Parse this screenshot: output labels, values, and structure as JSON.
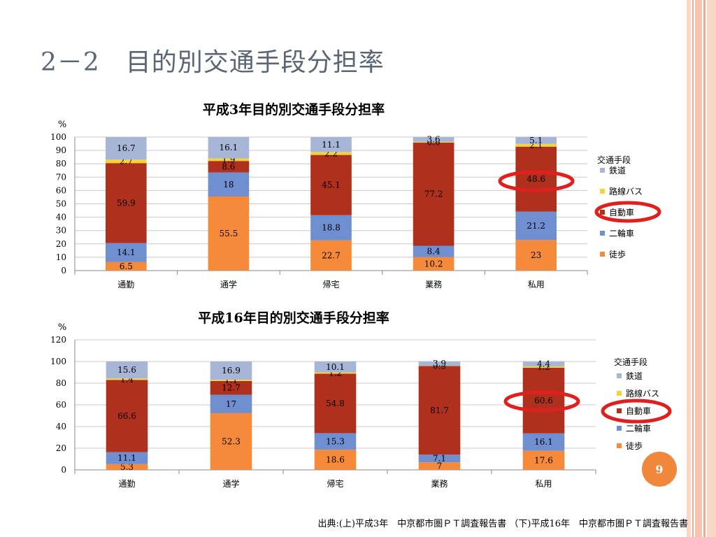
{
  "slide": {
    "title": "2－2　目的別交通手段分担率",
    "page_number": "9",
    "source": "出典:(上)平成3年　中京都市圏ＰＴ調査報告書 （下)平成16年　中京都市圏ＰＴ調査報告書"
  },
  "colors": {
    "鉄道": "#a7b5d6",
    "路線バス": "#f5d33a",
    "自動車": "#b0301e",
    "二輪車": "#6f8fd0",
    "徒歩": "#f58a3a",
    "highlight_ellipse": "#e0201e",
    "page_badge": "#f0873a",
    "title_text": "#5a6675"
  },
  "chart_data": [
    {
      "type": "bar",
      "stacked": true,
      "title": "平成3年目的別交通手段分担率",
      "ylabel": "%",
      "ylim": [
        0,
        100
      ],
      "yticks": [
        0,
        10,
        20,
        30,
        40,
        50,
        60,
        70,
        80,
        90,
        100
      ],
      "categories": [
        "通勤",
        "通学",
        "帰宅",
        "業務",
        "私用"
      ],
      "legend_title": "交通手段",
      "legend_order": [
        "鉄道",
        "路線バス",
        "自動車",
        "二輪車",
        "徒歩"
      ],
      "legend_position": "right",
      "highlight": {
        "category": "私用",
        "series": "自動車",
        "legend_item": "自動車"
      },
      "series": [
        {
          "name": "徒歩",
          "values": [
            6.5,
            55.5,
            22.7,
            10.2,
            23
          ]
        },
        {
          "name": "二輪車",
          "values": [
            14.1,
            18,
            18.8,
            8.4,
            21.2
          ]
        },
        {
          "name": "自動車",
          "values": [
            59.9,
            8.6,
            45.1,
            77.2,
            48.6
          ]
        },
        {
          "name": "路線バス",
          "values": [
            2.7,
            1.9,
            2.2,
            0.6,
            2.1
          ]
        },
        {
          "name": "鉄道",
          "values": [
            16.7,
            16.1,
            11.1,
            3.6,
            5.1
          ]
        }
      ]
    },
    {
      "type": "bar",
      "stacked": true,
      "title": "平成16年目的別交通手段分担率",
      "ylabel": "%",
      "ylim": [
        0,
        120
      ],
      "yticks": [
        0,
        20,
        40,
        60,
        80,
        100,
        120
      ],
      "categories": [
        "通勤",
        "通学",
        "帰宅",
        "業務",
        "私用"
      ],
      "legend_title": "交通手段",
      "legend_order": [
        "鉄道",
        "路線バス",
        "自動車",
        "二輪車",
        "徒歩"
      ],
      "legend_position": "right",
      "highlight": {
        "category": "私用",
        "series": "自動車",
        "legend_item": "自動車"
      },
      "series": [
        {
          "name": "徒歩",
          "values": [
            5.3,
            52.3,
            18.6,
            7,
            17.6
          ]
        },
        {
          "name": "二輪車",
          "values": [
            11.1,
            17,
            15.3,
            7.1,
            16.1
          ]
        },
        {
          "name": "自動車",
          "values": [
            66.6,
            12.7,
            54.8,
            81.7,
            60.6
          ]
        },
        {
          "name": "路線バス",
          "values": [
            1.4,
            1.1,
            1.2,
            0.3,
            1.2
          ]
        },
        {
          "name": "鉄道",
          "values": [
            15.6,
            16.9,
            10.1,
            3.9,
            4.4
          ]
        }
      ]
    }
  ]
}
